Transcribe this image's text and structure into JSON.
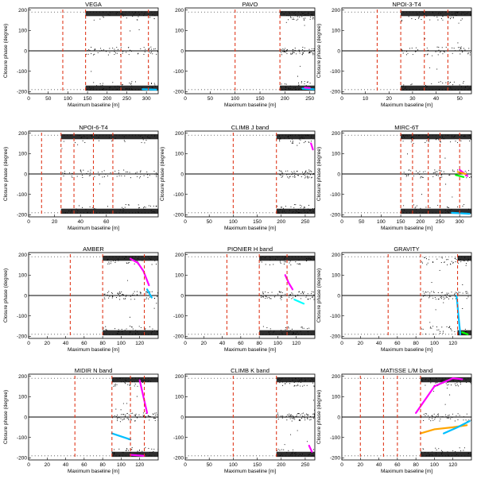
{
  "figure": {
    "ylabel": "Closure phase (degree)",
    "xlabel": "Maximum baseline [m]"
  },
  "chart_data": [
    {
      "type": "scatter",
      "title": "VEGA",
      "xlim": [
        0,
        330
      ],
      "xticks": [
        0,
        50,
        100,
        150,
        200,
        250,
        300
      ],
      "ylim": [
        -210,
        210
      ],
      "yticks": [
        -200,
        -100,
        0,
        100,
        200
      ],
      "vlines": [
        87,
        145,
        235,
        305
      ],
      "top_band_from": 145,
      "bottom_band_from": 145,
      "scatter_from": 145,
      "ylabel": "Closure phase (degree)",
      "xlabel": "Maximum baseline [m]",
      "colored_tracks": [
        {
          "color": "#00bfff",
          "x": [
            290,
            325
          ],
          "y": [
            -188,
            -190
          ]
        }
      ]
    },
    {
      "type": "scatter",
      "title": "PAVO",
      "xlim": [
        0,
        260
      ],
      "xticks": [
        0,
        50,
        100,
        150,
        200,
        250
      ],
      "ylim": [
        -210,
        210
      ],
      "yticks": [
        -200,
        -100,
        0,
        100,
        200
      ],
      "vlines": [
        100,
        190
      ],
      "top_band_from": 190,
      "bottom_band_from": 190,
      "scatter_from": 190,
      "ylabel": "",
      "xlabel": "Maximum baseline [m]",
      "colored_tracks": [
        {
          "color": "#00bfff",
          "x": [
            235,
            258
          ],
          "y": [
            -185,
            -188
          ]
        },
        {
          "color": "#ff00ff",
          "x": [
            240,
            250
          ],
          "y": [
            -180,
            -182
          ]
        }
      ]
    },
    {
      "type": "scatter",
      "title": "NPOI-3-T4",
      "xlim": [
        0,
        55
      ],
      "xticks": [
        0,
        10,
        20,
        30,
        40,
        50
      ],
      "ylim": [
        -210,
        210
      ],
      "yticks": [
        -200,
        -100,
        0,
        100,
        200
      ],
      "vlines": [
        15,
        25,
        35,
        45
      ],
      "top_band_from": 25,
      "bottom_band_from": 25,
      "scatter_from": 25,
      "ylabel": "Closure phase (degree)",
      "xlabel": "Maximum baseline [m]",
      "colored_tracks": []
    },
    {
      "type": "scatter",
      "title": "NPOI-6-T4",
      "xlim": [
        0,
        100
      ],
      "xticks": [
        0,
        20,
        40,
        60
      ],
      "ylim": [
        -210,
        210
      ],
      "yticks": [
        -200,
        -100,
        0,
        100,
        200
      ],
      "vlines": [
        10,
        25,
        35,
        50,
        65
      ],
      "top_band_from": 25,
      "bottom_band_from": 25,
      "scatter_from": 25,
      "ylabel": "Closure phase (degree)",
      "xlabel": "Maximum baseline [m]",
      "colored_tracks": []
    },
    {
      "type": "scatter",
      "title": "CLIMB J band",
      "xlim": [
        0,
        270
      ],
      "xticks": [
        0,
        50,
        100,
        150,
        200,
        250
      ],
      "ylim": [
        -210,
        210
      ],
      "yticks": [
        -200,
        -100,
        0,
        100,
        200
      ],
      "vlines": [
        100,
        190
      ],
      "top_band_from": 190,
      "bottom_band_from": 190,
      "scatter_from": 190,
      "ylabel": "Closure phase (degree)",
      "xlabel": "Maximum baseline [m]",
      "colored_tracks": [
        {
          "color": "#ff00ff",
          "x": [
            262,
            266
          ],
          "y": [
            150,
            120
          ]
        }
      ]
    },
    {
      "type": "scatter",
      "title": "MIRC-6T",
      "xlim": [
        0,
        330
      ],
      "xticks": [
        0,
        50,
        100,
        150,
        200,
        250,
        300
      ],
      "ylim": [
        -210,
        210
      ],
      "yticks": [
        -200,
        -100,
        0,
        100,
        200
      ],
      "vlines": [
        150,
        180,
        220,
        250,
        300
      ],
      "top_band_from": 150,
      "bottom_band_from": 150,
      "scatter_from": 150,
      "ylabel": "Closure phase (degree)",
      "xlabel": "Maximum baseline [m]",
      "colored_tracks": [
        {
          "color": "#ff00ff",
          "x": [
            300,
            320
          ],
          "y": [
            20,
            -10
          ]
        },
        {
          "color": "#00bfff",
          "x": [
            280,
            325
          ],
          "y": [
            -190,
            -195
          ]
        },
        {
          "color": "#ffa500",
          "x": [
            295,
            315
          ],
          "y": [
            10,
            0
          ]
        },
        {
          "color": "#00ff00",
          "x": [
            290,
            310
          ],
          "y": [
            -5,
            -15
          ]
        }
      ]
    },
    {
      "type": "scatter",
      "title": "AMBER",
      "xlim": [
        0,
        140
      ],
      "xticks": [
        0,
        20,
        40,
        60,
        80,
        100,
        120
      ],
      "ylim": [
        -210,
        210
      ],
      "yticks": [
        -200,
        -100,
        0,
        100,
        200
      ],
      "vlines": [
        45,
        80,
        125
      ],
      "top_band_from": 80,
      "bottom_band_from": 80,
      "scatter_from": 80,
      "ylabel": "Closure phase (degree)",
      "xlabel": "Maximum baseline [m]",
      "colored_tracks": [
        {
          "color": "#ff00ff",
          "x": [
            110,
            118,
            124,
            130
          ],
          "y": [
            180,
            160,
            120,
            50
          ]
        },
        {
          "color": "#00bfff",
          "x": [
            128,
            133
          ],
          "y": [
            30,
            -10
          ]
        }
      ]
    },
    {
      "type": "scatter",
      "title": "PIONIER H band",
      "xlim": [
        0,
        140
      ],
      "xticks": [
        0,
        20,
        40,
        60,
        80,
        100,
        120
      ],
      "ylim": [
        -210,
        210
      ],
      "yticks": [
        -200,
        -100,
        0,
        100,
        200
      ],
      "vlines": [
        45,
        80,
        110
      ],
      "top_band_from": 80,
      "bottom_band_from": 80,
      "scatter_from": 80,
      "ylabel": "",
      "xlabel": "Maximum baseline [m]",
      "colored_tracks": [
        {
          "color": "#ff00ff",
          "x": [
            108,
            112,
            116
          ],
          "y": [
            100,
            60,
            30
          ]
        },
        {
          "color": "#00ffff",
          "x": [
            118,
            128
          ],
          "y": [
            -20,
            -40
          ]
        }
      ]
    },
    {
      "type": "scatter",
      "title": "GRAVITY",
      "xlim": [
        0,
        140
      ],
      "xticks": [
        0,
        20,
        40,
        60,
        80,
        100,
        120
      ],
      "ylim": [
        -210,
        210
      ],
      "yticks": [
        -200,
        -100,
        0,
        100,
        200
      ],
      "vlines": [
        50,
        85,
        125
      ],
      "top_band_from": 125,
      "bottom_band_from": 125,
      "scatter_from": 85,
      "ylabel": "Closure phase (degree)",
      "xlabel": "Maximum baseline [m]",
      "colored_tracks": [
        {
          "color": "#00bfff",
          "x": [
            124,
            126,
            128
          ],
          "y": [
            0,
            -100,
            -190
          ]
        },
        {
          "color": "#00ff00",
          "x": [
            130,
            136
          ],
          "y": [
            -180,
            -190
          ]
        }
      ]
    },
    {
      "type": "scatter",
      "title": "MIDIR N band",
      "xlim": [
        0,
        140
      ],
      "xticks": [
        0,
        20,
        40,
        60,
        80,
        100,
        120
      ],
      "ylim": [
        -210,
        210
      ],
      "yticks": [
        -200,
        -100,
        0,
        100,
        200
      ],
      "vlines": [
        50,
        90,
        110,
        125
      ],
      "top_band_from": 90,
      "bottom_band_from": 90,
      "scatter_from": 90,
      "ylabel": "Closure phase (degree)",
      "xlabel": "Maximum baseline [m]",
      "colored_tracks": [
        {
          "color": "#ff00ff",
          "x": [
            120,
            124,
            128
          ],
          "y": [
            180,
            100,
            20
          ]
        },
        {
          "color": "#00bfff",
          "x": [
            90,
            110
          ],
          "y": [
            -80,
            -110
          ]
        },
        {
          "color": "#ff00ff",
          "x": [
            110,
            125
          ],
          "y": [
            -185,
            -190
          ]
        }
      ]
    },
    {
      "type": "scatter",
      "title": "CLIMB K band",
      "xlim": [
        0,
        270
      ],
      "xticks": [
        0,
        50,
        100,
        150,
        200,
        250
      ],
      "ylim": [
        -210,
        210
      ],
      "yticks": [
        -200,
        -100,
        0,
        100,
        200
      ],
      "vlines": [
        100,
        190
      ],
      "top_band_from": 190,
      "bottom_band_from": 190,
      "scatter_from": 190,
      "ylabel": "",
      "xlabel": "Maximum baseline [m]",
      "colored_tracks": [
        {
          "color": "#ff00ff",
          "x": [
            258,
            264
          ],
          "y": [
            -140,
            -170
          ]
        }
      ]
    },
    {
      "type": "scatter",
      "title": "MATISSE L/M band",
      "xlim": [
        0,
        140
      ],
      "xticks": [
        0,
        20,
        40,
        60,
        80,
        100,
        120
      ],
      "ylim": [
        -210,
        210
      ],
      "yticks": [
        -200,
        -100,
        0,
        100,
        200
      ],
      "vlines": [
        20,
        45,
        60,
        85
      ],
      "top_band_from": 85,
      "bottom_band_from": 85,
      "scatter_from": 85,
      "ylabel": "Closure phase (degree)",
      "xlabel": "Maximum baseline [m]",
      "colored_tracks": [
        {
          "color": "#ff00ff",
          "x": [
            80,
            100,
            120,
            130
          ],
          "y": [
            20,
            150,
            190,
            185
          ]
        },
        {
          "color": "#ffa500",
          "x": [
            85,
            100,
            120,
            135
          ],
          "y": [
            -80,
            -60,
            -50,
            -40
          ]
        },
        {
          "color": "#00bfff",
          "x": [
            110,
            125,
            138
          ],
          "y": [
            -80,
            -50,
            -20
          ]
        }
      ]
    }
  ]
}
